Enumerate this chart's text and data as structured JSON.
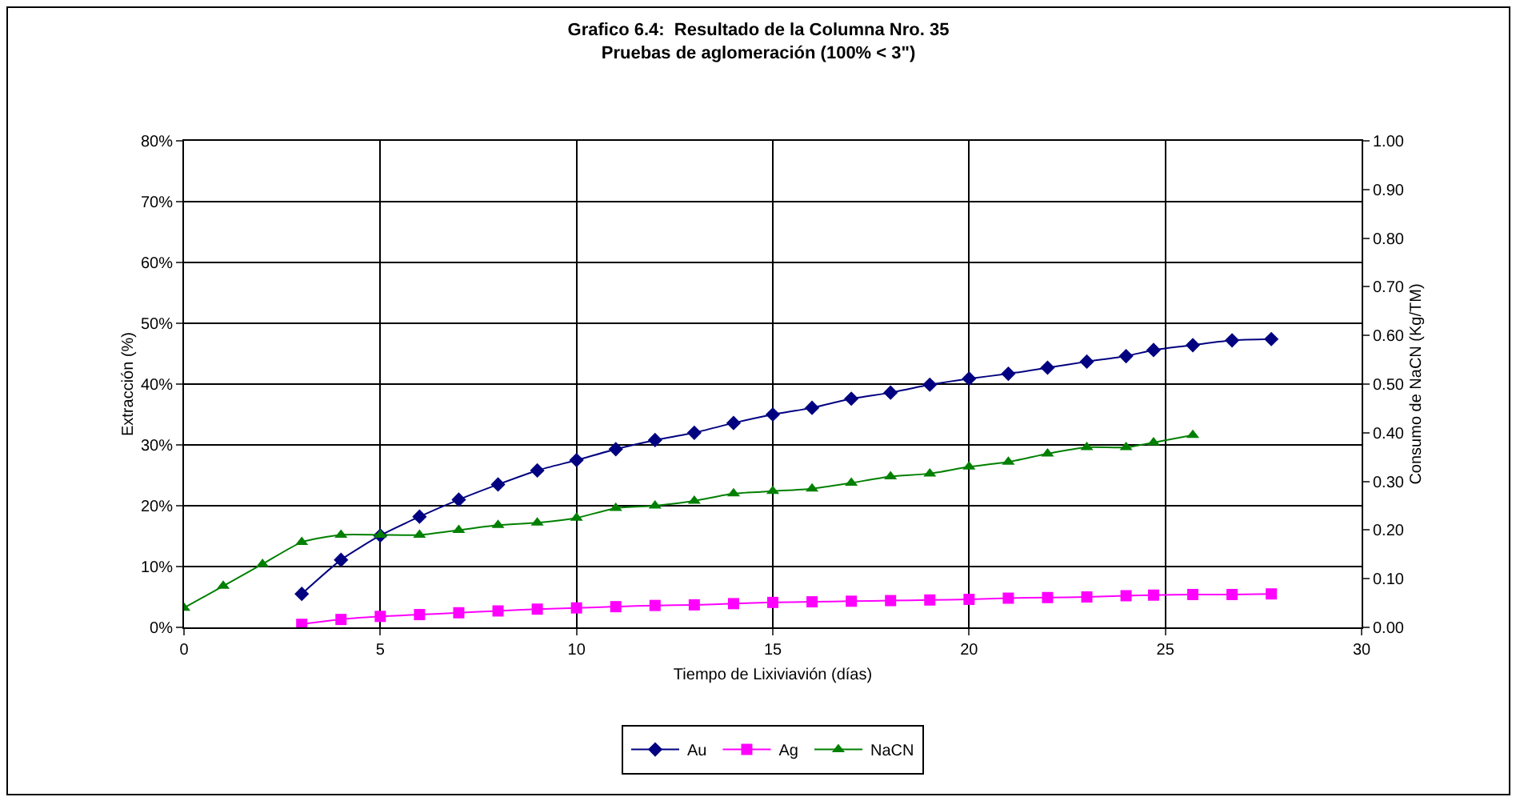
{
  "chart_data": {
    "type": "line",
    "title": "Grafico 6.4:  Resultado de la Columna Nro. 35",
    "subtitle": "Pruebas de aglomeración (100% < 3\")",
    "xlabel": "Tiempo de Lixiviavión (días)",
    "ylabel": "Extracción (%)",
    "y2label": "Consumo de NaCN (Kg/TM)",
    "xlim": [
      0,
      30
    ],
    "xticks": [
      0,
      5,
      10,
      15,
      20,
      25,
      30
    ],
    "ylim": [
      0,
      80
    ],
    "yticks": [
      {
        "value": 0,
        "label": "0%"
      },
      {
        "value": 10,
        "label": "10%"
      },
      {
        "value": 20,
        "label": "20%"
      },
      {
        "value": 30,
        "label": "30%"
      },
      {
        "value": 40,
        "label": "40%"
      },
      {
        "value": 50,
        "label": "50%"
      },
      {
        "value": 60,
        "label": "60%"
      },
      {
        "value": 70,
        "label": "70%"
      },
      {
        "value": 80,
        "label": "80%"
      }
    ],
    "y2lim": [
      0,
      1
    ],
    "y2ticks": [
      {
        "value": 0,
        "label": "0.00"
      },
      {
        "value": 0.1,
        "label": "0.10"
      },
      {
        "value": 0.2,
        "label": "0.20"
      },
      {
        "value": 0.3,
        "label": "0.30"
      },
      {
        "value": 0.4,
        "label": "0.40"
      },
      {
        "value": 0.5,
        "label": "0.50"
      },
      {
        "value": 0.6,
        "label": "0.60"
      },
      {
        "value": 0.7,
        "label": "0.70"
      },
      {
        "value": 0.8,
        "label": "0.80"
      },
      {
        "value": 0.9,
        "label": "0.90"
      },
      {
        "value": 1,
        "label": "1.00"
      }
    ],
    "grid": true,
    "legend": "bottom",
    "line_style": "solid",
    "series": [
      {
        "name": "Au",
        "color": "#000080",
        "marker": "diamond",
        "x": [
          3,
          4,
          5,
          6,
          7,
          8,
          9,
          10,
          11,
          12,
          13,
          14,
          15,
          16,
          17,
          18,
          19,
          20,
          21,
          22,
          23,
          24,
          24.7,
          25.7,
          26.7,
          27.7
        ],
        "values": [
          5.5,
          11.1,
          15.1,
          18.2,
          21.0,
          23.5,
          25.8,
          27.5,
          29.3,
          30.8,
          32.0,
          33.6,
          35.0,
          36.1,
          37.6,
          38.6,
          39.9,
          40.9,
          41.7,
          42.7,
          43.7,
          44.6,
          45.6,
          46.4,
          47.2,
          47.4
        ]
      },
      {
        "name": "Ag",
        "color": "#ff00ff",
        "marker": "square",
        "x": [
          3,
          4,
          5,
          6,
          7,
          8,
          9,
          10,
          11,
          12,
          13,
          14,
          15,
          16,
          17,
          18,
          19,
          20,
          21,
          22,
          23,
          24,
          24.7,
          25.7,
          26.7,
          27.7
        ],
        "values": [
          0.5,
          1.3,
          1.8,
          2.1,
          2.4,
          2.7,
          3.0,
          3.2,
          3.4,
          3.6,
          3.7,
          3.9,
          4.1,
          4.2,
          4.3,
          4.4,
          4.5,
          4.6,
          4.8,
          4.9,
          5.0,
          5.2,
          5.3,
          5.4,
          5.4,
          5.5
        ]
      },
      {
        "name": "NaCN",
        "color": "#008000",
        "marker": "triangle",
        "axis": "y2",
        "x": [
          0,
          1,
          2,
          3,
          4,
          5,
          6,
          7,
          8,
          9,
          10,
          11,
          12,
          13,
          14,
          15,
          16,
          17,
          18,
          19,
          20,
          21,
          22,
          23,
          24,
          24.7,
          25.7
        ],
        "values": [
          0.04,
          0.085,
          0.13,
          0.175,
          0.19,
          0.19,
          0.19,
          0.2,
          0.21,
          0.215,
          0.225,
          0.245,
          0.25,
          0.26,
          0.275,
          0.28,
          0.285,
          0.297,
          0.31,
          0.316,
          0.33,
          0.34,
          0.357,
          0.37,
          0.37,
          0.38,
          0.395
        ]
      }
    ]
  }
}
